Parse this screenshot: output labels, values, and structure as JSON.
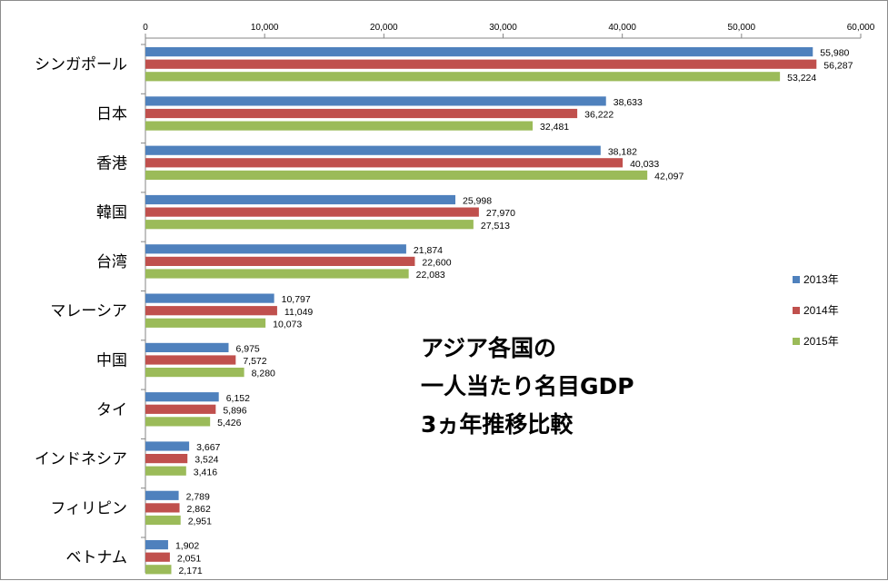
{
  "chart_data": {
    "type": "bar",
    "orientation": "horizontal",
    "title_lines": [
      "アジア各国の",
      "一人当たり名目GDP",
      "3ヵ年推移比較"
    ],
    "categories": [
      "シンガポール",
      "日本",
      "香港",
      "韓国",
      "台湾",
      "マレーシア",
      "中国",
      "タイ",
      "インドネシア",
      "フィリピン",
      "ベトナム"
    ],
    "series": [
      {
        "name": "2013年",
        "color": "#4f81bd",
        "values": [
          55980,
          38633,
          38182,
          25998,
          21874,
          10797,
          6975,
          6152,
          3667,
          2789,
          1902
        ],
        "labels": [
          "55,980",
          "38,633",
          "38,182",
          "25,998",
          "21,874",
          "10,797",
          "6,975",
          "6,152",
          "3,667",
          "2,789",
          "1,902"
        ]
      },
      {
        "name": "2014年",
        "color": "#c0504d",
        "values": [
          56287,
          36222,
          40033,
          27970,
          22600,
          11049,
          7572,
          5896,
          3524,
          2862,
          2051
        ],
        "labels": [
          "56,287",
          "36,222",
          "40,033",
          "27,970",
          "22,600",
          "11,049",
          "7,572",
          "5,896",
          "3,524",
          "2,862",
          "2,051"
        ]
      },
      {
        "name": "2015年",
        "color": "#9bbb59",
        "values": [
          53224,
          32481,
          42097,
          27513,
          22083,
          10073,
          8280,
          5426,
          3416,
          2951,
          2171
        ],
        "labels": [
          "53,224",
          "32,481",
          "42,097",
          "27,513",
          "22,083",
          "10,073",
          "8,280",
          "5,426",
          "3,416",
          "2,951",
          "2,171"
        ]
      }
    ],
    "xlim": [
      0,
      60000
    ],
    "ticks": [
      0,
      10000,
      20000,
      30000,
      40000,
      50000,
      60000
    ],
    "tick_labels": [
      "0",
      "10,000",
      "20,000",
      "30,000",
      "40,000",
      "50,000",
      "60,000"
    ],
    "axis_position": "top",
    "grid": false,
    "legend_position": "right"
  }
}
